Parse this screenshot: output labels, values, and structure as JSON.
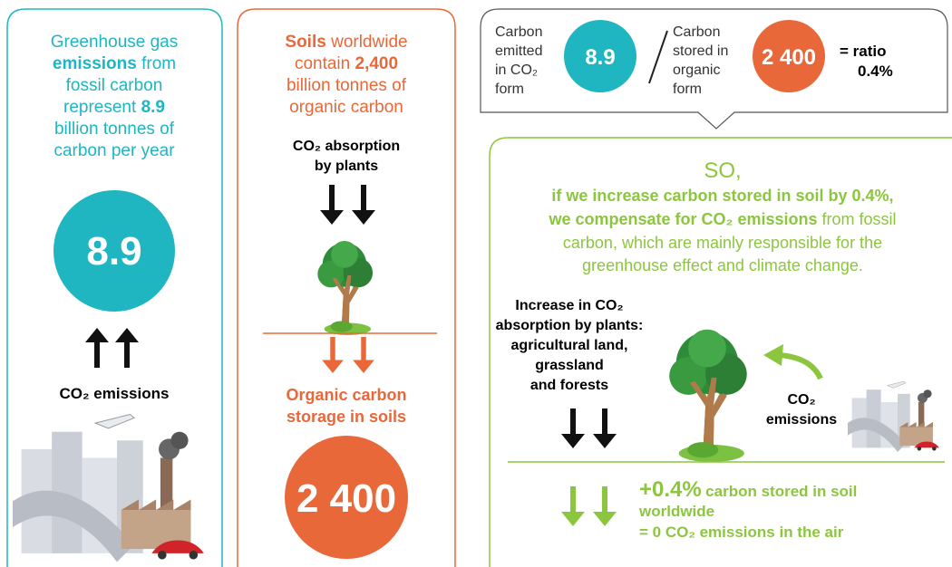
{
  "panel_emissions": {
    "text": [
      "Greenhouse gas",
      "emissions",
      "from",
      "fossil carbon",
      "represent",
      "8.9",
      "billion tonnes of",
      "carbon per year"
    ],
    "circle_value": "8.9",
    "label": "CO₂ emissions"
  },
  "panel_soils": {
    "text": [
      "Soils",
      "worldwide",
      "contain",
      "2,400",
      "billion tonnes of",
      "organic carbon"
    ],
    "absorption_label": [
      "CO₂ absorption",
      "by plants"
    ],
    "storage_label": [
      "Organic carbon",
      "storage in soils"
    ],
    "circle_value": "2 400"
  },
  "panel_ratio": {
    "emitted_label": [
      "Carbon",
      "emitted",
      "in CO₂",
      "form"
    ],
    "emitted_value": "8.9",
    "stored_label": [
      "Carbon",
      "stored in",
      "organic",
      "form"
    ],
    "stored_value": "2 400",
    "ratio_label": [
      "= ratio",
      "0.4%"
    ]
  },
  "panel_conclusion": {
    "heading": "SO,",
    "text": [
      "if we increase carbon stored in soil by 0.4%,",
      "we compensate for CO₂ emissions",
      "from fossil",
      "carbon, which are mainly responsible for the",
      "greenhouse effect and climate change."
    ],
    "plants_label": [
      "Increase in CO₂",
      "absorption by plants:",
      "agricultural land,",
      "grassland",
      "and forests"
    ],
    "emissions_label": [
      "CO₂",
      "emissions"
    ],
    "result": [
      "+0.4%",
      "carbon stored in soil",
      "worldwide",
      "= 0 CO₂ emissions in the air"
    ]
  }
}
